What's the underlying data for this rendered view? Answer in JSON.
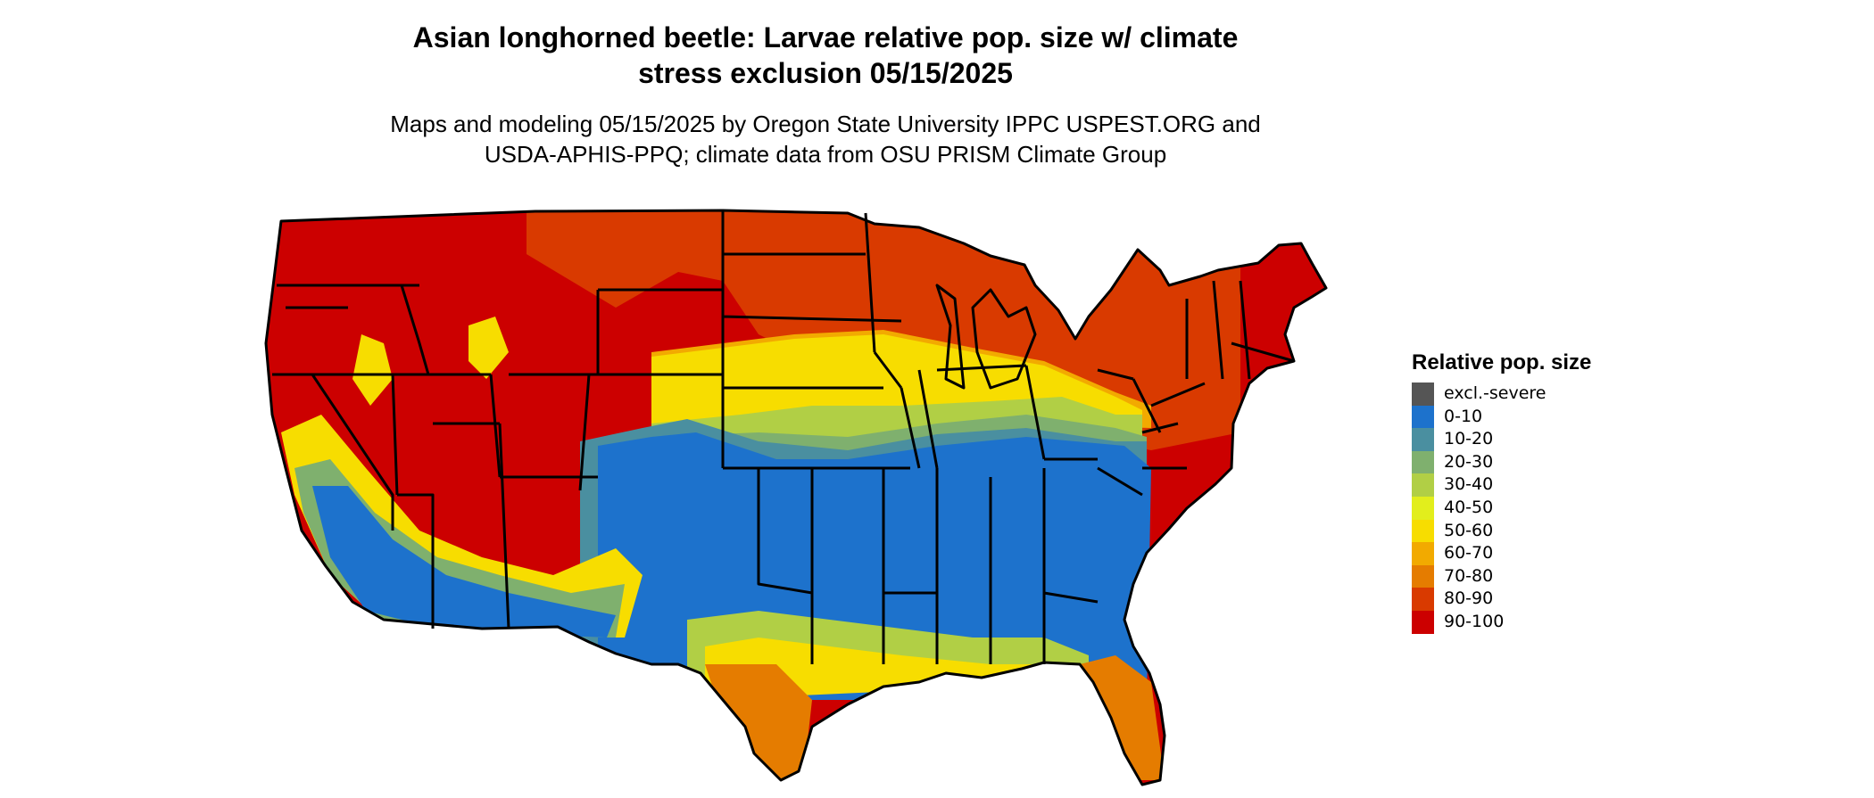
{
  "title_lines": [
    "Asian longhorned beetle: Larvae relative pop. size w/ climate",
    "stress exclusion 05/15/2025"
  ],
  "subtitle_lines": [
    "Maps and modeling 05/15/2025 by Oregon State University IPPC USPEST.ORG and",
    "USDA-APHIS-PPQ; climate data from OSU PRISM Climate Group"
  ],
  "legend": {
    "title": "Relative pop. size",
    "items": [
      {
        "label": "excl.-severe",
        "color": "#555555"
      },
      {
        "label": "0-10",
        "color": "#1d72cc"
      },
      {
        "label": "10-20",
        "color": "#4a8fa0"
      },
      {
        "label": "20-30",
        "color": "#7fb06e"
      },
      {
        "label": "30-40",
        "color": "#b1cf45"
      },
      {
        "label": "40-50",
        "color": "#e2ee1c"
      },
      {
        "label": "50-60",
        "color": "#f7dd00"
      },
      {
        "label": "60-70",
        "color": "#f2aa00"
      },
      {
        "label": "70-80",
        "color": "#e57c00"
      },
      {
        "label": "80-90",
        "color": "#d93a00"
      },
      {
        "label": "90-100",
        "color": "#cc0000"
      }
    ]
  }
}
